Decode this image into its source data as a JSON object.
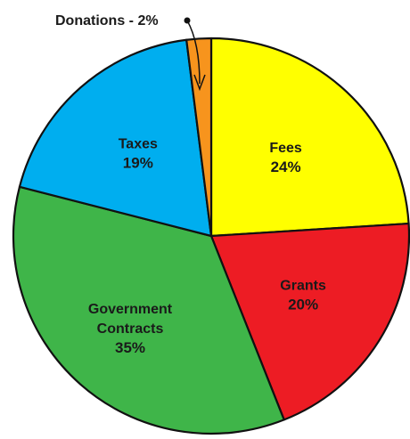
{
  "chart_data": {
    "type": "pie",
    "title": "",
    "slices": [
      {
        "name": "Fees",
        "value_label": "24%",
        "value": 24,
        "color": "#ffff00"
      },
      {
        "name": "Grants",
        "value_label": "20%",
        "value": 20,
        "color": "#ed1c24"
      },
      {
        "name_lines": [
          "Government",
          "Contracts"
        ],
        "value_label": "35%",
        "value": 35,
        "color": "#3fb549"
      },
      {
        "name": "Taxes",
        "value_label": "19%",
        "value": 19,
        "color": "#00aeef"
      },
      {
        "name": "Donations",
        "value_label": "2%",
        "value": 2,
        "color": "#f7941d"
      }
    ],
    "callout": {
      "text": "Donations - 2%"
    },
    "legend": "none"
  }
}
